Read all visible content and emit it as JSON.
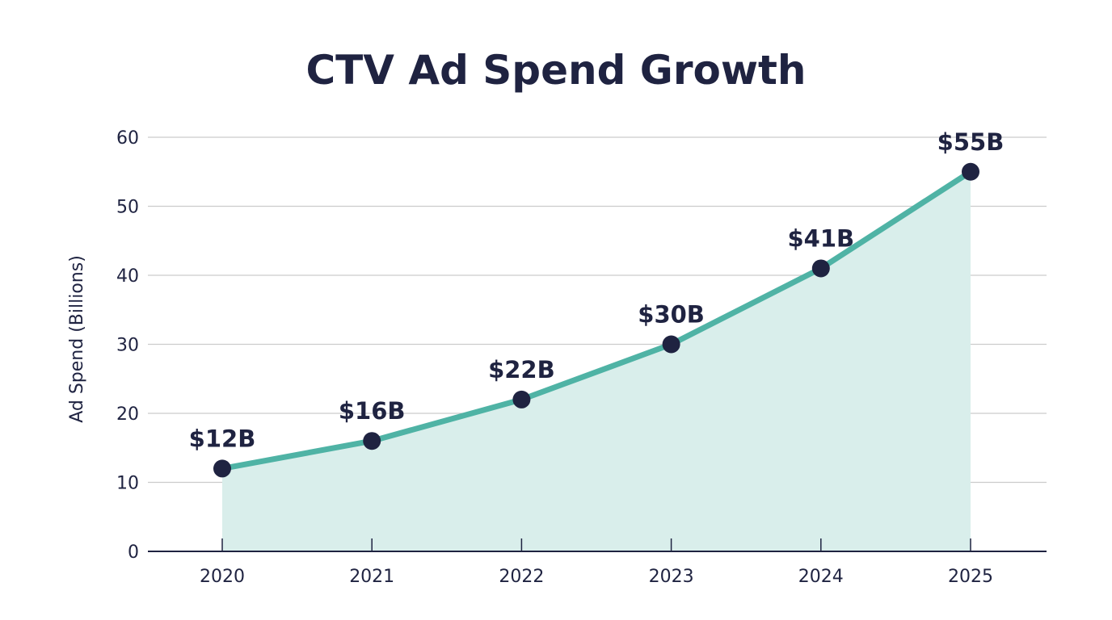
{
  "chart_data": {
    "type": "area",
    "title": "CTV Ad Spend Growth",
    "xlabel": "",
    "ylabel": "Ad Spend (Billions)",
    "categories": [
      "2020",
      "2021",
      "2022",
      "2023",
      "2024",
      "2025"
    ],
    "values": [
      12,
      16,
      22,
      30,
      41,
      55
    ],
    "data_labels": [
      "$12B",
      "$16B",
      "$22B",
      "$30B",
      "$41B",
      "$55B"
    ],
    "ylim": [
      0,
      60
    ],
    "yticks": [
      0,
      10,
      20,
      30,
      40,
      50,
      60
    ],
    "grid": true,
    "legend": "none",
    "colors": {
      "line": "#4fb3a5",
      "fill": "#d9eeeb",
      "marker": "#1f2341",
      "text": "#1f2341",
      "grid": "#cccccc"
    }
  }
}
